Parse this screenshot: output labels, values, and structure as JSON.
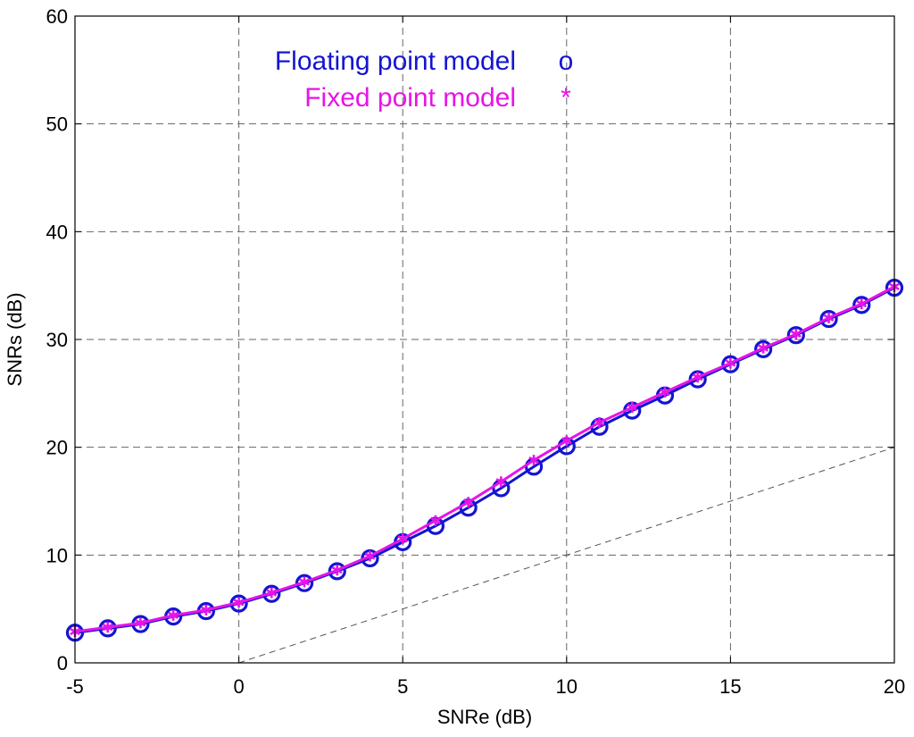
{
  "chart_data": {
    "type": "line",
    "xlabel": "SNRe (dB)",
    "ylabel": "SNRs (dB)",
    "xlim": [
      -5,
      20
    ],
    "ylim": [
      0,
      60
    ],
    "xticks": [
      "-5",
      "0",
      "5",
      "10",
      "15",
      "20"
    ],
    "yticks": [
      "0",
      "10",
      "20",
      "30",
      "40",
      "50",
      "60"
    ],
    "grid": true,
    "legend_placement": "top-center",
    "x": [
      -5,
      -4,
      -3,
      -2,
      -1,
      0,
      1,
      2,
      3,
      4,
      5,
      6,
      7,
      8,
      9,
      10,
      11,
      12,
      13,
      14,
      15,
      16,
      17,
      18,
      19,
      20
    ],
    "series": [
      {
        "name": "Floating point model",
        "marker_label": "o",
        "color": "#1414d2",
        "values": [
          2.8,
          3.2,
          3.6,
          4.3,
          4.8,
          5.5,
          6.4,
          7.4,
          8.5,
          9.7,
          11.2,
          12.7,
          14.4,
          16.2,
          18.2,
          20.1,
          21.9,
          23.4,
          24.8,
          26.3,
          27.7,
          29.1,
          30.4,
          31.9,
          33.2,
          34.8
        ]
      },
      {
        "name": "Fixed point model",
        "marker_label": "*",
        "color": "#e614e6",
        "values": [
          2.9,
          3.3,
          3.7,
          4.4,
          4.9,
          5.6,
          6.5,
          7.5,
          8.6,
          9.9,
          11.5,
          13.2,
          14.9,
          16.8,
          18.8,
          20.6,
          22.3,
          23.7,
          25.1,
          26.5,
          27.8,
          29.2,
          30.5,
          32.0,
          33.3,
          34.9
        ]
      },
      {
        "name": "",
        "style": "dashed-reference",
        "color": "#555555",
        "x": [
          0,
          20
        ],
        "values": [
          0,
          20
        ]
      }
    ]
  }
}
